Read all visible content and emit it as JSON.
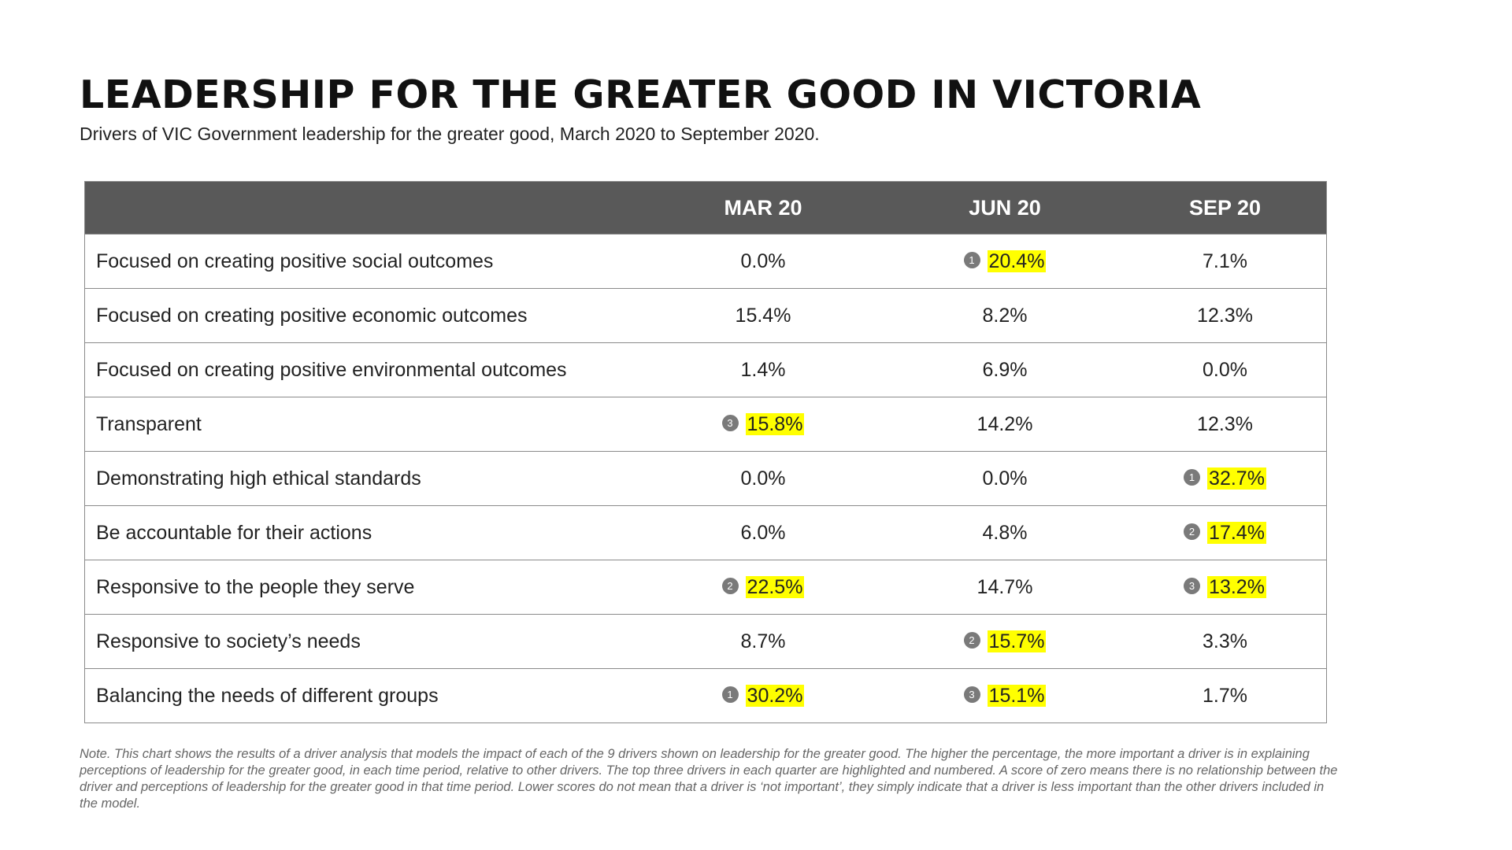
{
  "title": "LEADERSHIP FOR THE GREATER GOOD IN VICTORIA",
  "subtitle": "Drivers of VIC Government leadership for the greater good, March 2020 to September 2020.",
  "table": {
    "columns": [
      "",
      "MAR 20",
      "JUN 20",
      "SEP 20"
    ],
    "highlight_color": "#ffff00",
    "rows": [
      {
        "label": "Focused on creating positive social outcomes",
        "cells": [
          {
            "value": "0.0%",
            "rank": ""
          },
          {
            "value": "20.4%",
            "rank": "1"
          },
          {
            "value": "7.1%",
            "rank": ""
          }
        ]
      },
      {
        "label": "Focused on creating positive economic outcomes",
        "cells": [
          {
            "value": "15.4%",
            "rank": ""
          },
          {
            "value": "8.2%",
            "rank": ""
          },
          {
            "value": "12.3%",
            "rank": ""
          }
        ]
      },
      {
        "label": "Focused on creating positive environmental outcomes",
        "cells": [
          {
            "value": "1.4%",
            "rank": ""
          },
          {
            "value": "6.9%",
            "rank": ""
          },
          {
            "value": "0.0%",
            "rank": ""
          }
        ]
      },
      {
        "label": "Transparent",
        "cells": [
          {
            "value": "15.8%",
            "rank": "3"
          },
          {
            "value": "14.2%",
            "rank": ""
          },
          {
            "value": "12.3%",
            "rank": ""
          }
        ]
      },
      {
        "label": "Demonstrating high ethical standards",
        "cells": [
          {
            "value": "0.0%",
            "rank": ""
          },
          {
            "value": "0.0%",
            "rank": ""
          },
          {
            "value": "32.7%",
            "rank": "1"
          }
        ]
      },
      {
        "label": "Be accountable for their actions",
        "cells": [
          {
            "value": "6.0%",
            "rank": ""
          },
          {
            "value": "4.8%",
            "rank": ""
          },
          {
            "value": "17.4%",
            "rank": "2"
          }
        ]
      },
      {
        "label": "Responsive to the people they serve",
        "cells": [
          {
            "value": "22.5%",
            "rank": "2"
          },
          {
            "value": "14.7%",
            "rank": ""
          },
          {
            "value": "13.2%",
            "rank": "3"
          }
        ]
      },
      {
        "label": "Responsive to society’s needs",
        "cells": [
          {
            "value": "8.7%",
            "rank": ""
          },
          {
            "value": "15.7%",
            "rank": "2"
          },
          {
            "value": "3.3%",
            "rank": ""
          }
        ]
      },
      {
        "label": "Balancing the needs of different groups",
        "cells": [
          {
            "value": "30.2%",
            "rank": "1"
          },
          {
            "value": "15.1%",
            "rank": "3"
          },
          {
            "value": "1.7%",
            "rank": ""
          }
        ]
      }
    ]
  },
  "note": "Note. This chart shows the results of a driver analysis that models the impact of each of the 9 drivers shown on leadership for the greater good. The higher the percentage, the more important a driver is in explaining perceptions of leadership for the greater good, in each time period, relative to other drivers. The top three drivers in each quarter are highlighted and numbered. A score of zero means there is no relationship between the driver and perceptions of leadership for the greater good in that time period. Lower scores do not mean that a driver is ‘not important’, they simply indicate that a driver is less important than the other drivers included in the model."
}
